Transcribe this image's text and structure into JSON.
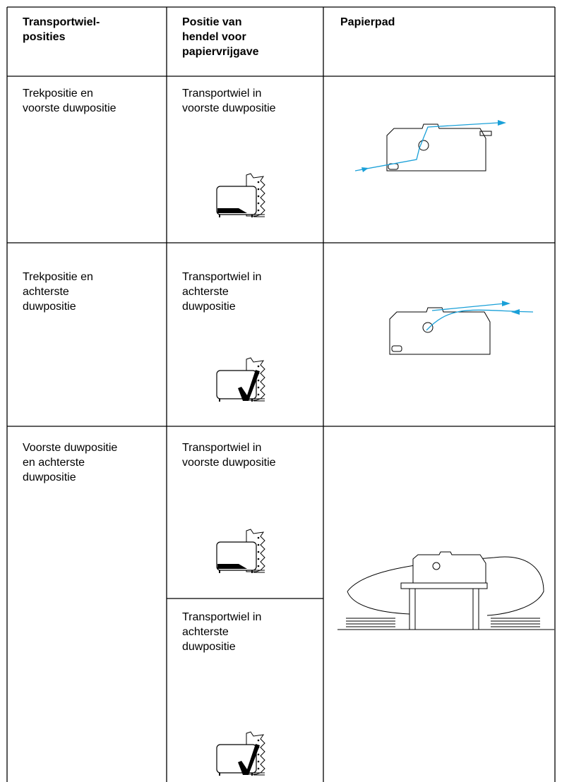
{
  "table": {
    "header": [
      [
        "Transportwiel-",
        "posities"
      ],
      [
        "Positie van",
        "hendel voor",
        "papiervrijgave"
      ],
      [
        "Papierpad"
      ]
    ],
    "rows": [
      {
        "position": [
          "Trekpositie en",
          "voorste duwpositie"
        ],
        "lever": [
          [
            "Transportwiel in",
            "voorste duwpositie"
          ]
        ]
      },
      {
        "position": [
          "Trekpositie en",
          "achterste",
          "duwpositie"
        ],
        "lever": [
          [
            "Transportwiel in",
            "achterste",
            "duwpositie"
          ]
        ]
      },
      {
        "position": [
          "Voorste duwpositie",
          "en achterste",
          "duwpositie"
        ],
        "lever": [
          [
            "Transportwiel in",
            "voorste duwpositie"
          ],
          [
            "Transportwiel in",
            "achterste",
            "duwpositie"
          ]
        ]
      }
    ]
  }
}
